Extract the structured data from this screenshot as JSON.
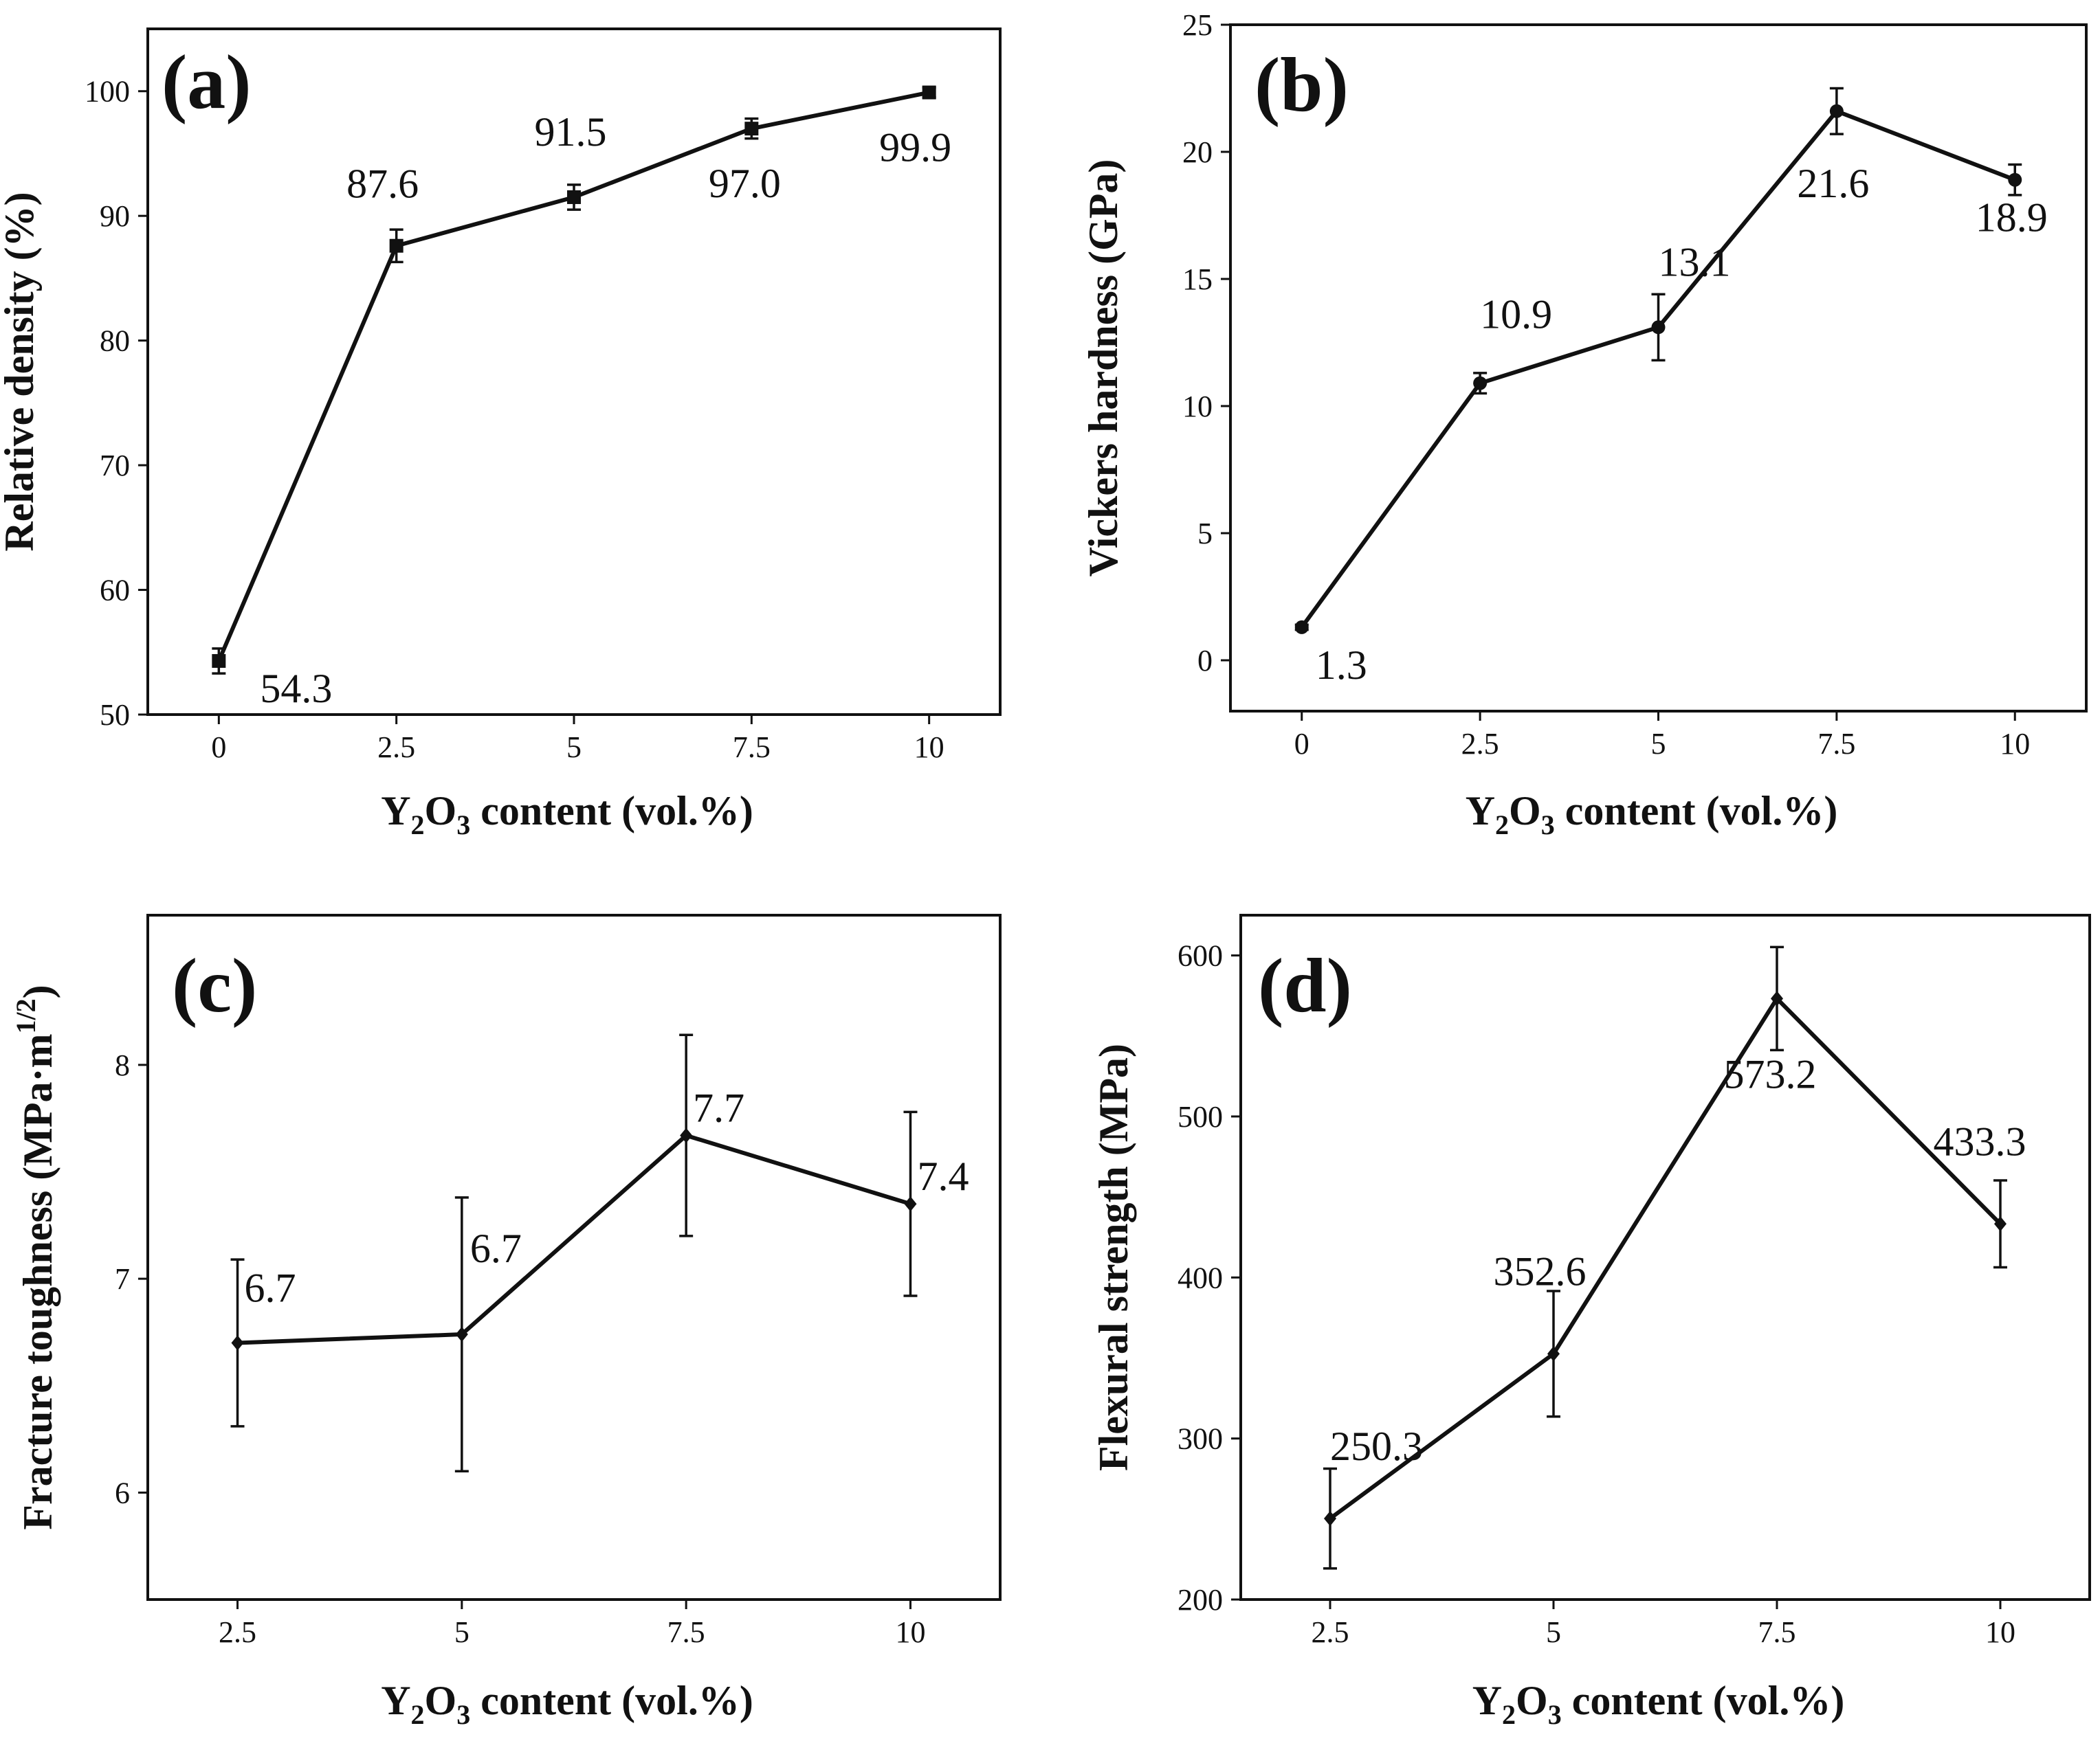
{
  "chart_data": [
    {
      "type": "line",
      "panel_label": "(a)",
      "title": "",
      "xlabel_parts": [
        "Y",
        "2",
        "O",
        "3",
        " content (vol.%)"
      ],
      "ylabel": "Relative density (%)",
      "x": [
        0,
        2.5,
        5,
        7.5,
        10
      ],
      "values": [
        54.3,
        87.6,
        91.5,
        97.0,
        99.9
      ],
      "errors": [
        1.0,
        1.3,
        1.0,
        0.8,
        0.4
      ],
      "data_labels": [
        "54.3",
        "87.6",
        "91.5",
        "97.0",
        "99.9"
      ],
      "marker": "square",
      "xlim": [
        -1.0,
        11.0
      ],
      "ylim": [
        50,
        105
      ],
      "xticks": [
        0,
        2.5,
        5,
        7.5,
        10
      ],
      "xtick_labels": [
        "0",
        "2.5",
        "5",
        "7.5",
        "10"
      ],
      "yticks": [
        50,
        60,
        70,
        80,
        90,
        100
      ],
      "ytick_labels": [
        "50",
        "60",
        "70",
        "80",
        "90",
        "100"
      ]
    },
    {
      "type": "line",
      "panel_label": "(b)",
      "title": "",
      "xlabel_parts": [
        "Y",
        "2",
        "O",
        "3",
        " content (vol.%)"
      ],
      "ylabel": "Vickers hardness (GPa)",
      "x": [
        0,
        2.5,
        5,
        7.5,
        10
      ],
      "values": [
        1.3,
        10.9,
        13.1,
        21.6,
        18.9
      ],
      "errors": [
        0.1,
        0.4,
        1.3,
        0.9,
        0.6
      ],
      "data_labels": [
        "1.3",
        "10.9",
        "13.1",
        "21.6",
        "18.9"
      ],
      "marker": "circle",
      "xlim": [
        -1.0,
        11.0
      ],
      "ylim": [
        -2,
        25
      ],
      "xticks": [
        0,
        2.5,
        5,
        7.5,
        10
      ],
      "xtick_labels": [
        "0",
        "2.5",
        "5",
        "7.5",
        "10"
      ],
      "yticks": [
        0,
        5,
        10,
        15,
        20,
        25
      ],
      "ytick_labels": [
        "0",
        "5",
        "10",
        "15",
        "20",
        "25"
      ]
    },
    {
      "type": "line",
      "panel_label": "(c)",
      "title": "",
      "xlabel_parts": [
        "Y",
        "2",
        "O",
        "3",
        " content (vol.%)"
      ],
      "ylabel_main": "Fracture toughness (MPa·m",
      "ylabel_sup": "1/2",
      "ylabel_close": ")",
      "x": [
        2.5,
        5,
        7.5,
        10
      ],
      "values": [
        6.7,
        6.74,
        7.67,
        7.35
      ],
      "errors": [
        0.39,
        0.64,
        0.47,
        0.43
      ],
      "data_labels": [
        "6.7",
        "6.7",
        "7.7",
        "7.4"
      ],
      "marker": "diamond",
      "xlim": [
        1.5,
        11.0
      ],
      "ylim": [
        5.5,
        8.7
      ],
      "xticks": [
        2.5,
        5,
        7.5,
        10
      ],
      "xtick_labels": [
        "2.5",
        "5",
        "7.5",
        "10"
      ],
      "yticks": [
        6,
        7,
        8
      ],
      "ytick_labels": [
        "6",
        "7",
        "8"
      ]
    },
    {
      "type": "line",
      "panel_label": "(d)",
      "title": "",
      "xlabel_parts": [
        "Y",
        "2",
        "O",
        "3",
        " content (vol.%)"
      ],
      "ylabel": "Flexural strength  (MPa)",
      "x": [
        2.5,
        5,
        7.5,
        10
      ],
      "values": [
        250.3,
        352.6,
        573.2,
        433.3
      ],
      "errors": [
        31,
        39,
        32,
        27
      ],
      "data_labels": [
        "250.3",
        "352.6",
        "573.2",
        "433.3"
      ],
      "marker": "diamond",
      "xlim": [
        1.5,
        11.0
      ],
      "ylim": [
        200,
        625
      ],
      "xticks": [
        2.5,
        5,
        7.5,
        10
      ],
      "xtick_labels": [
        "2.5",
        "5",
        "7.5",
        "10"
      ],
      "yticks": [
        200,
        300,
        400,
        500,
        600
      ],
      "ytick_labels": [
        "200",
        "300",
        "400",
        "500",
        "600"
      ]
    }
  ]
}
